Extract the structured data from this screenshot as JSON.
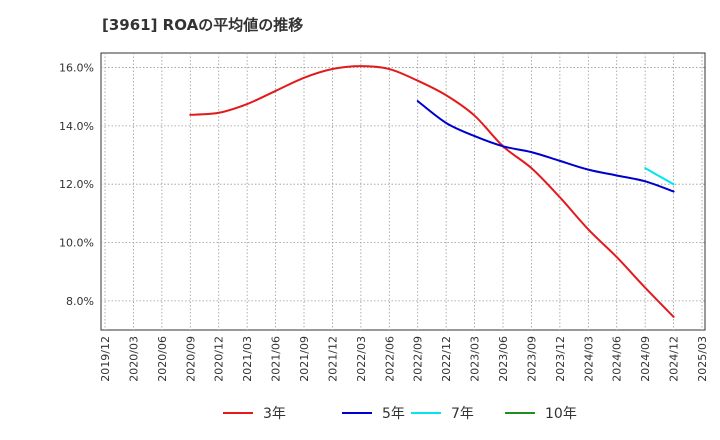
{
  "chart_data": {
    "type": "line",
    "title": "[3961]  ROAの平均値の推移",
    "xlabel": "",
    "ylabel": "",
    "x_ticks": [
      "2019/12",
      "2020/03",
      "2020/06",
      "2020/09",
      "2020/12",
      "2021/03",
      "2021/06",
      "2021/09",
      "2021/12",
      "2022/03",
      "2022/06",
      "2022/09",
      "2022/12",
      "2023/03",
      "2023/06",
      "2023/09",
      "2023/12",
      "2024/03",
      "2024/06",
      "2024/09",
      "2024/12",
      "2025/03"
    ],
    "y_ticks": [
      "8.0%",
      "10.0%",
      "12.0%",
      "14.0%",
      "16.0%"
    ],
    "ylim": [
      7.0,
      16.5
    ],
    "grid": true,
    "legend_position": "bottom",
    "series": [
      {
        "name": "3年",
        "color": "#e31a1c",
        "points": [
          [
            "2020/09",
            14.38
          ],
          [
            "2020/12",
            14.45
          ],
          [
            "2021/03",
            14.75
          ],
          [
            "2021/06",
            15.2
          ],
          [
            "2021/09",
            15.65
          ],
          [
            "2021/12",
            15.95
          ],
          [
            "2022/03",
            16.05
          ],
          [
            "2022/06",
            15.95
          ],
          [
            "2022/09",
            15.55
          ],
          [
            "2022/12",
            15.05
          ],
          [
            "2023/03",
            14.35
          ],
          [
            "2023/06",
            13.3
          ],
          [
            "2023/09",
            12.55
          ],
          [
            "2023/12",
            11.55
          ],
          [
            "2024/03",
            10.45
          ],
          [
            "2024/06",
            9.5
          ],
          [
            "2024/09",
            8.45
          ],
          [
            "2024/12",
            7.45
          ]
        ]
      },
      {
        "name": "5年",
        "color": "#0000cc",
        "points": [
          [
            "2022/09",
            14.85
          ],
          [
            "2022/12",
            14.1
          ],
          [
            "2023/03",
            13.65
          ],
          [
            "2023/06",
            13.3
          ],
          [
            "2023/09",
            13.1
          ],
          [
            "2023/12",
            12.8
          ],
          [
            "2024/03",
            12.5
          ],
          [
            "2024/06",
            12.3
          ],
          [
            "2024/09",
            12.1
          ],
          [
            "2024/12",
            11.75
          ]
        ]
      },
      {
        "name": "7年",
        "color": "#00e5ee",
        "points": [
          [
            "2024/09",
            12.55
          ],
          [
            "2024/12",
            12.0
          ]
        ]
      },
      {
        "name": "10年",
        "color": "#228b22",
        "points": []
      }
    ]
  }
}
